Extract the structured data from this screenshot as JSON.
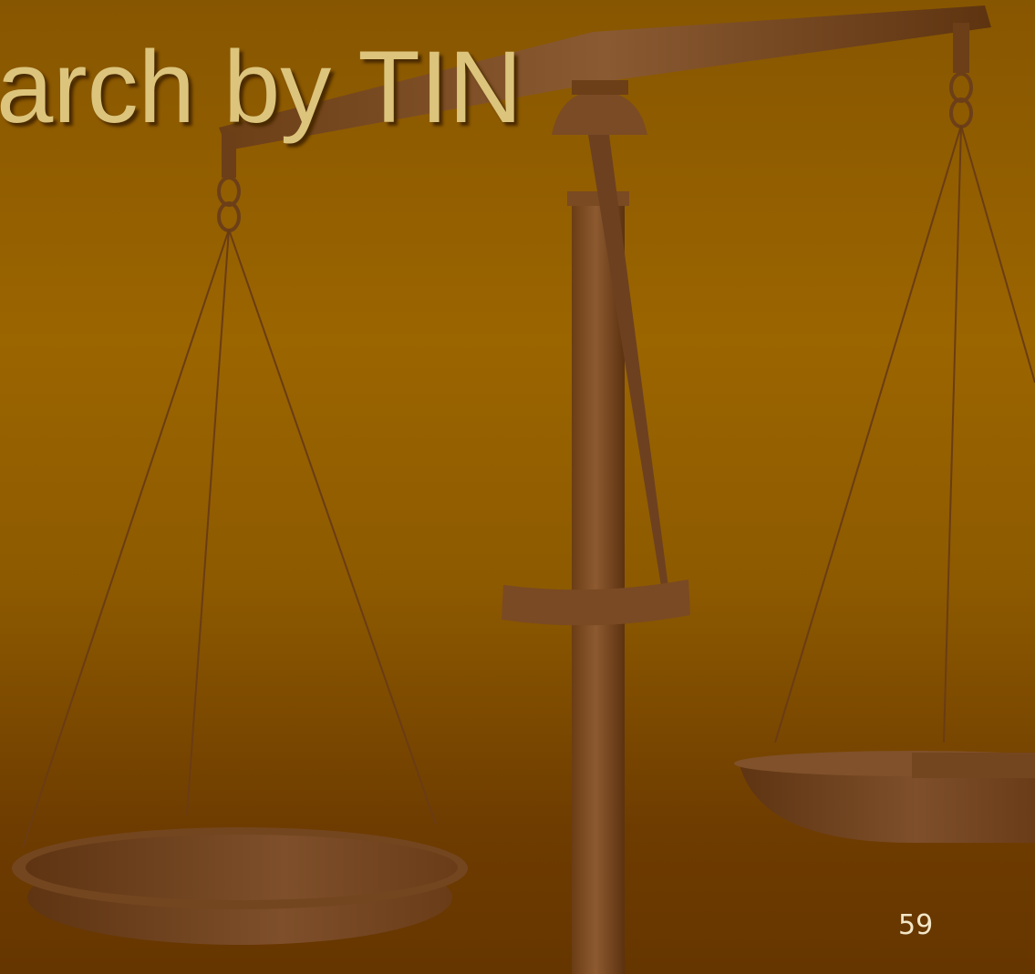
{
  "slide": {
    "title": "arch by TIN",
    "page_number": "59"
  }
}
